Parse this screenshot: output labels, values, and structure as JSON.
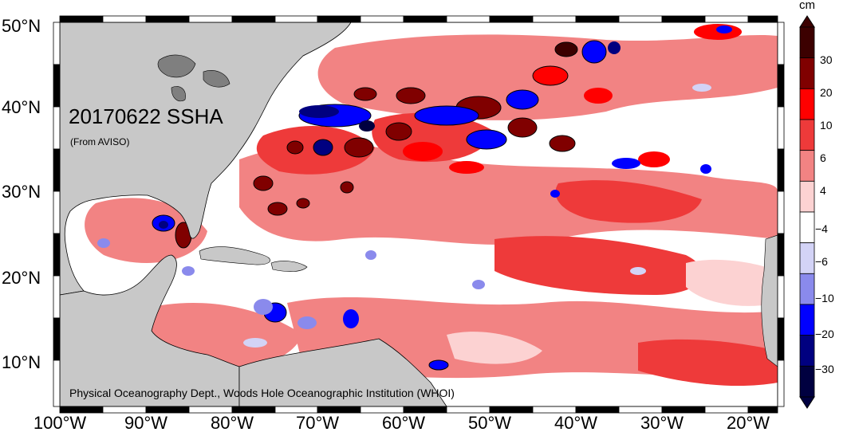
{
  "map": {
    "title": "20170622 SSHA",
    "subtitle": "(From AVISO)",
    "credit": "Physical Oceanography Dept., Woods Hole Oceanographic Institution (WHOI)",
    "lat_labels": [
      "50°N",
      "40°N",
      "30°N",
      "20°N",
      "10°N"
    ],
    "lon_labels": [
      "100°W",
      "90°W",
      "80°W",
      "70°W",
      "60°W",
      "50°W",
      "40°W",
      "30°W",
      "20°W"
    ],
    "land_color": "#c8c8c8",
    "ocean_base_color": "#ffffff"
  },
  "colorbar": {
    "unit": "cm",
    "labels": [
      "30",
      "20",
      "10",
      "6",
      "4",
      "−4",
      "−6",
      "−10",
      "−20",
      "−30"
    ],
    "colors": [
      "#3c0000",
      "#800000",
      "#ff0000",
      "#ee3a3a",
      "#f28383",
      "#fcd2d2",
      "#ffffff",
      "#d3d3f6",
      "#8a8aec",
      "#0000ff",
      "#000080",
      "#000040"
    ]
  }
}
